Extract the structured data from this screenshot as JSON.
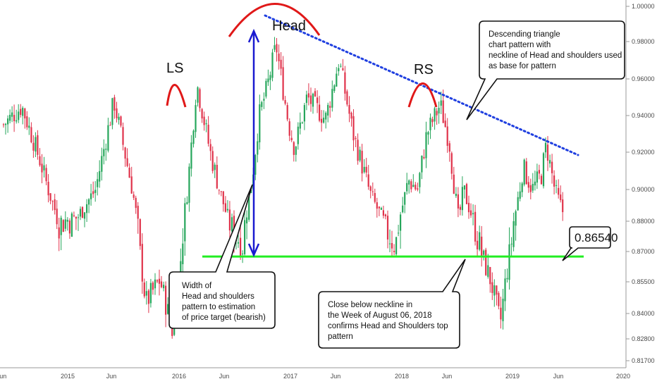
{
  "chart_data": {
    "type": "candlestick",
    "title": "",
    "xlabel": "",
    "ylabel": "",
    "ylim": [
      0.815,
      1.002
    ],
    "grid": false,
    "colors": {
      "up": "#26a65b",
      "down": "#e0334b",
      "neckline": "#22ee22",
      "trendline": "#1f3fe0",
      "arc": "#e01818",
      "width_arrow": "#1a1ad0"
    },
    "y_ticks": [
      "1.00000",
      "0.98000",
      "0.96000",
      "0.94000",
      "0.92000",
      "0.90000",
      "0.88000",
      "0.87000",
      "0.85500",
      "0.84000",
      "0.82800",
      "0.81700"
    ],
    "x_ticks": [
      "Jun",
      "2015",
      "Jun",
      "2016",
      "Jun",
      "2017",
      "Jun",
      "2018",
      "Jun",
      "2019",
      "Jun",
      "2020"
    ],
    "pattern_labels": {
      "left_shoulder": "LS",
      "head": "Head",
      "right_shoulder": "RS"
    },
    "neckline_value": 0.8675,
    "price_label": "0.86540",
    "callouts": {
      "triangle": [
        "Descending triangle",
        "chart pattern with",
        "neckline of Head and shoulders used",
        "as base for pattern"
      ],
      "width": [
        "Width of",
        "Head and shoulders",
        "pattern to estimation",
        "of price target (bearish)"
      ],
      "close": [
        "Close below neckline in",
        "the Week of August 06, 2018",
        "confirms Head and Shoulders top",
        "pattern"
      ]
    },
    "anchors": [
      {
        "date": "2014-06-01",
        "value": 0.935
      },
      {
        "date": "2014-08-01",
        "value": 0.945
      },
      {
        "date": "2014-10-01",
        "value": 0.915
      },
      {
        "date": "2014-12-01",
        "value": 0.88
      },
      {
        "date": "2015-02-01",
        "value": 0.882
      },
      {
        "date": "2015-04-01",
        "value": 0.9
      },
      {
        "date": "2015-06-01",
        "value": 0.948
      },
      {
        "date": "2015-08-01",
        "value": 0.9
      },
      {
        "date": "2015-09-15",
        "value": 0.845
      },
      {
        "date": "2015-11-01",
        "value": 0.856
      },
      {
        "date": "2015-12-15",
        "value": 0.83
      },
      {
        "date": "2016-02-01",
        "value": 0.9
      },
      {
        "date": "2016-03-01",
        "value": 0.958
      },
      {
        "date": "2016-04-15",
        "value": 0.92
      },
      {
        "date": "2016-06-15",
        "value": 0.88
      },
      {
        "date": "2016-08-01",
        "value": 0.872
      },
      {
        "date": "2016-09-01",
        "value": 0.905
      },
      {
        "date": "2016-09-25",
        "value": 0.94
      },
      {
        "date": "2016-10-20",
        "value": 0.955
      },
      {
        "date": "2016-11-20",
        "value": 0.978
      },
      {
        "date": "2017-01-01",
        "value": 0.935
      },
      {
        "date": "2017-01-20",
        "value": 0.922
      },
      {
        "date": "2017-03-01",
        "value": 0.95
      },
      {
        "date": "2017-05-01",
        "value": 0.938
      },
      {
        "date": "2017-06-15",
        "value": 0.97
      },
      {
        "date": "2017-08-01",
        "value": 0.93
      },
      {
        "date": "2017-10-01",
        "value": 0.895
      },
      {
        "date": "2017-11-15",
        "value": 0.878
      },
      {
        "date": "2017-12-20",
        "value": 0.872
      },
      {
        "date": "2018-02-01",
        "value": 0.905
      },
      {
        "date": "2018-03-01",
        "value": 0.9
      },
      {
        "date": "2018-04-01",
        "value": 0.93
      },
      {
        "date": "2018-05-15",
        "value": 0.946
      },
      {
        "date": "2018-06-15",
        "value": 0.925
      },
      {
        "date": "2018-07-15",
        "value": 0.88
      },
      {
        "date": "2018-08-01",
        "value": 0.9
      },
      {
        "date": "2018-09-01",
        "value": 0.882
      },
      {
        "date": "2018-10-01",
        "value": 0.868
      },
      {
        "date": "2018-11-01",
        "value": 0.855
      },
      {
        "date": "2018-12-01",
        "value": 0.835
      },
      {
        "date": "2018-12-20",
        "value": 0.858
      },
      {
        "date": "2019-01-20",
        "value": 0.885
      },
      {
        "date": "2019-02-15",
        "value": 0.912
      },
      {
        "date": "2019-03-15",
        "value": 0.9
      },
      {
        "date": "2019-04-15",
        "value": 0.908
      },
      {
        "date": "2019-05-01",
        "value": 0.924
      },
      {
        "date": "2019-06-01",
        "value": 0.898
      },
      {
        "date": "2019-06-25",
        "value": 0.886
      }
    ]
  }
}
